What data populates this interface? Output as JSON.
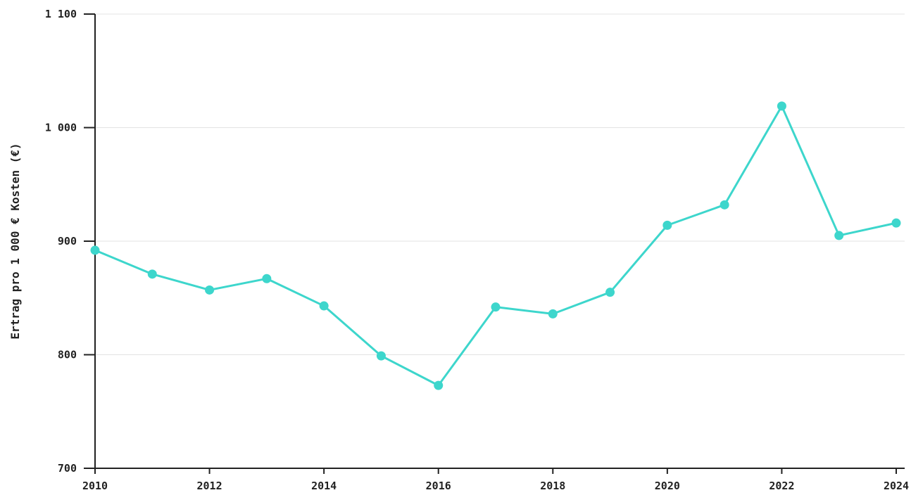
{
  "chart_data": {
    "type": "line",
    "title": "",
    "xlabel": "",
    "ylabel": "Ertrag pro 1 000 € Kosten (€)",
    "x": [
      2010,
      2011,
      2012,
      2013,
      2014,
      2015,
      2016,
      2017,
      2018,
      2019,
      2020,
      2021,
      2022,
      2023,
      2024
    ],
    "series": [
      {
        "values": [
          892,
          871,
          857,
          867,
          843,
          799,
          773,
          842,
          836,
          855,
          914,
          932,
          1019,
          905,
          916
        ],
        "color": "#3dd6cc"
      }
    ],
    "xlim": [
      2010,
      2024
    ],
    "ylim": [
      700,
      1100
    ],
    "x_ticks": [
      2010,
      2012,
      2014,
      2016,
      2018,
      2020,
      2022,
      2024
    ],
    "x_tick_labels": [
      "2010",
      "2012",
      "2014",
      "2016",
      "2018",
      "2020",
      "2022",
      "2024"
    ],
    "y_ticks": [
      700,
      800,
      900,
      1000,
      1100
    ],
    "y_tick_labels": [
      "700",
      "800",
      "900",
      "1 000",
      "1 100"
    ],
    "grid": "horizontal",
    "legend": "none"
  }
}
